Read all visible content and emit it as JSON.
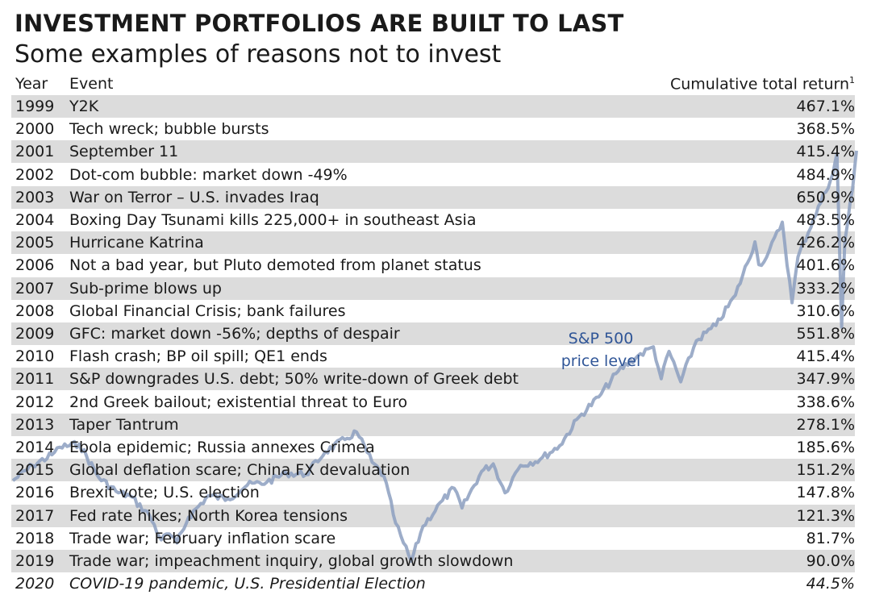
{
  "header": {
    "title": "INVESTMENT PORTFOLIOS ARE BUILT TO LAST",
    "subtitle": "Some examples of reasons not to invest"
  },
  "columns": {
    "year": "Year",
    "event": "Event",
    "return": "Cumulative total return",
    "return_footnote": "1"
  },
  "rows": [
    {
      "year": "1999",
      "event": "Y2K",
      "return": "467.1%"
    },
    {
      "year": "2000",
      "event": "Tech wreck; bubble bursts",
      "return": "368.5%"
    },
    {
      "year": "2001",
      "event": "September 11",
      "return": "415.4%"
    },
    {
      "year": "2002",
      "event": "Dot-com bubble: market down -49%",
      "return": "484.9%"
    },
    {
      "year": "2003",
      "event": "War on Terror – U.S. invades Iraq",
      "return": "650.9%"
    },
    {
      "year": "2004",
      "event": "Boxing Day Tsunami kills 225,000+ in southeast Asia",
      "return": "483.5%"
    },
    {
      "year": "2005",
      "event": "Hurricane Katrina",
      "return": "426.2%"
    },
    {
      "year": "2006",
      "event": "Not a bad year, but Pluto demoted from planet status",
      "return": "401.6%"
    },
    {
      "year": "2007",
      "event": "Sub-prime blows up",
      "return": "333.2%"
    },
    {
      "year": "2008",
      "event": "Global Financial Crisis; bank failures",
      "return": "310.6%"
    },
    {
      "year": "2009",
      "event": "GFC: market down -56%; depths of despair",
      "return": "551.8%"
    },
    {
      "year": "2010",
      "event": "Flash crash; BP oil spill; QE1 ends",
      "return": "415.4%"
    },
    {
      "year": "2011",
      "event": "S&P downgrades U.S. debt; 50% write-down of Greek debt",
      "return": "347.9%"
    },
    {
      "year": "2012",
      "event": "2nd Greek bailout; existential threat to Euro",
      "return": "338.6%"
    },
    {
      "year": "2013",
      "event": "Taper Tantrum",
      "return": "278.1%"
    },
    {
      "year": "2014",
      "event": "Ebola epidemic; Russia annexes Crimea",
      "return": "185.6%"
    },
    {
      "year": "2015",
      "event": "Global deflation scare; China FX devaluation",
      "return": "151.2%"
    },
    {
      "year": "2016",
      "event": "Brexit vote; U.S. election",
      "return": "147.8%"
    },
    {
      "year": "2017",
      "event": "Fed rate hikes; North Korea tensions",
      "return": "121.3%"
    },
    {
      "year": "2018",
      "event": "Trade war; February inflation scare",
      "return": "81.7%"
    },
    {
      "year": "2019",
      "event": "Trade war; impeachment inquiry, global growth slowdown",
      "return": "90.0%"
    },
    {
      "year": "2020",
      "event": "COVID-19 pandemic, U.S. Presidential Election",
      "return": "44.5%",
      "italic": true
    }
  ],
  "chart_data": {
    "type": "table",
    "title": "INVESTMENT PORTFOLIOS ARE BUILT TO LAST",
    "subtitle": "Some examples of reasons not to invest",
    "columns": [
      "Year",
      "Event",
      "Cumulative total return"
    ],
    "background_series": {
      "type": "line",
      "name": "S&P 500 price level",
      "label_lines": [
        "S&P 500",
        "price level"
      ],
      "color": "#8c9fbf",
      "x_range": [
        1999,
        2020.6
      ],
      "y_range": [
        600,
        3500
      ],
      "x": [
        1999.0,
        1999.5,
        2000.0,
        2000.2,
        2000.7,
        2001.2,
        2001.7,
        2002.0,
        2002.5,
        2002.8,
        2003.0,
        2003.2,
        2003.5,
        2004.0,
        2004.5,
        2005.0,
        2005.5,
        2006.0,
        2006.5,
        2007.0,
        2007.5,
        2007.8,
        2008.2,
        2008.5,
        2008.8,
        2009.0,
        2009.2,
        2009.5,
        2010.0,
        2010.3,
        2010.5,
        2011.0,
        2011.3,
        2011.6,
        2011.8,
        2012.0,
        2012.5,
        2013.0,
        2013.5,
        2014.0,
        2014.5,
        2015.0,
        2015.4,
        2015.6,
        2015.8,
        2016.1,
        2016.5,
        2017.0,
        2017.5,
        2018.0,
        2018.1,
        2018.3,
        2018.7,
        2018.95,
        2019.1,
        2019.5,
        2020.0,
        2020.1,
        2020.22,
        2020.3,
        2020.5,
        2020.6
      ],
      "y": [
        1230,
        1330,
        1400,
        1450,
        1470,
        1250,
        1150,
        1130,
        1000,
        840,
        880,
        820,
        990,
        1130,
        1110,
        1200,
        1220,
        1280,
        1270,
        1420,
        1500,
        1550,
        1350,
        1260,
        950,
        820,
        700,
        930,
        1100,
        1180,
        1050,
        1290,
        1340,
        1150,
        1250,
        1330,
        1370,
        1460,
        1650,
        1780,
        1950,
        2050,
        2110,
        1900,
        2080,
        1880,
        2150,
        2250,
        2450,
        2800,
        2650,
        2700,
        2930,
        2400,
        2700,
        2950,
        3250,
        3380,
        2240,
        2800,
        3150,
        3400
      ]
    }
  }
}
